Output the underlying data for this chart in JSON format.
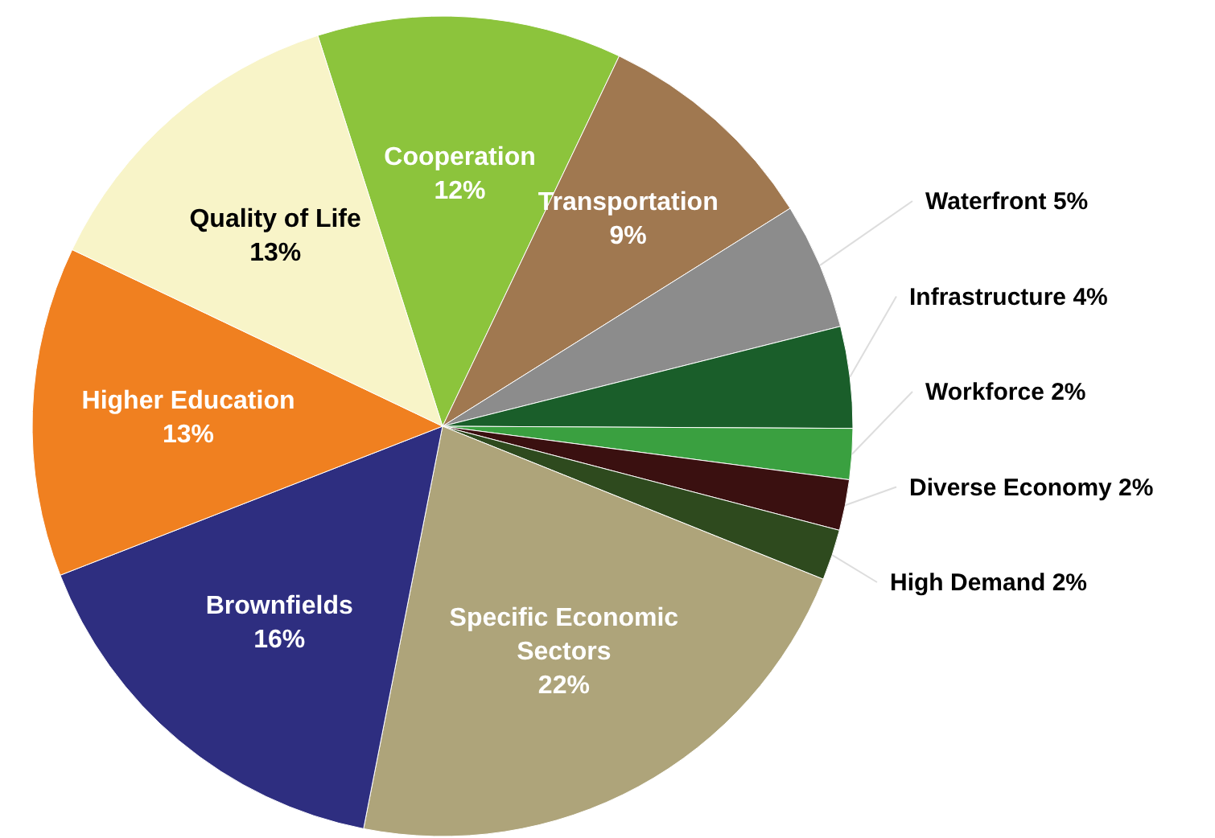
{
  "chart_data": {
    "type": "pie",
    "categories": [
      "Cooperation",
      "Transportation",
      "Waterfront",
      "Infrastructure",
      "Workforce",
      "Diverse Economy",
      "High Demand",
      "Specific Economic Sectors",
      "Brownfields",
      "Higher Education",
      "Quality of Life"
    ],
    "values": [
      12,
      9,
      5,
      4,
      2,
      2,
      2,
      22,
      16,
      13,
      13
    ],
    "value_labels": [
      "12%",
      "9%",
      "5%",
      "4%",
      "2%",
      "2%",
      "2%",
      "22%",
      "16%",
      "13%",
      "13%"
    ],
    "colors": [
      "#8cc43c",
      "#a07850",
      "#8c8c8c",
      "#1a5e2a",
      "#3aa040",
      "#3a1010",
      "#2e4a1e",
      "#aea47a",
      "#2e2e80",
      "#f08020",
      "#f8f4c8"
    ]
  }
}
